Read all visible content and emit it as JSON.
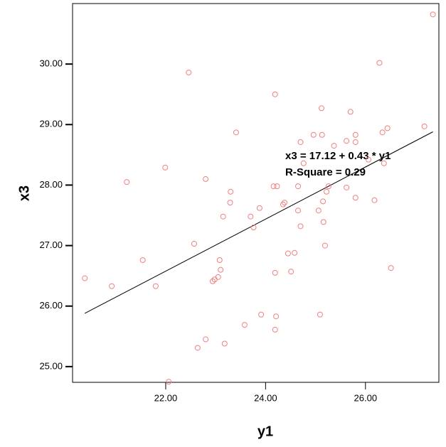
{
  "chart_data": {
    "type": "scatter",
    "x_label": "y1",
    "y_label": "x3",
    "xlim": [
      20.135,
      27.47
    ],
    "ylim": [
      24.74,
      31.0
    ],
    "xticks": [
      {
        "value": 22,
        "label": "22.00"
      },
      {
        "value": 24,
        "label": "24.00"
      },
      {
        "value": 26,
        "label": "26.00"
      }
    ],
    "yticks": [
      {
        "value": 25,
        "label": "25.00"
      },
      {
        "value": 26,
        "label": "26.00"
      },
      {
        "value": 27,
        "label": "27.00"
      },
      {
        "value": 28,
        "label": "28.00"
      },
      {
        "value": 29,
        "label": "29.00"
      },
      {
        "value": 30,
        "label": "30.00"
      }
    ],
    "color": "#f08080",
    "x": [
      27.35,
      26.28,
      22.46,
      24.19,
      25.12,
      25.7,
      23.41,
      27.18,
      26.44,
      26.34,
      24.96,
      25.13,
      25.37,
      25.62,
      25.8,
      25.8,
      24.7,
      24.76,
      26.06,
      26.37,
      21.99,
      22.8,
      21.22,
      24.16,
      24.23,
      24.65,
      25.26,
      25.62,
      23.3,
      25.22,
      23.29,
      24.35,
      24.38,
      25.15,
      25.8,
      26.18,
      23.88,
      24.65,
      25.06,
      23.15,
      23.7,
      25.16,
      23.76,
      24.7,
      22.57,
      25.19,
      21.54,
      23.08,
      24.45,
      24.58,
      23.1,
      24.19,
      24.51,
      26.51,
      20.38,
      22.98,
      22.94,
      23.05,
      20.92,
      21.8,
      24.21,
      23.91,
      25.09,
      23.58,
      24.19,
      22.8,
      22.64,
      23.18,
      22.06
    ],
    "y": [
      30.82,
      30.02,
      29.86,
      29.5,
      29.27,
      29.21,
      28.87,
      28.97,
      28.94,
      28.87,
      28.83,
      28.83,
      28.65,
      28.73,
      28.83,
      28.71,
      28.71,
      28.36,
      28.42,
      28.36,
      28.29,
      28.1,
      28.05,
      27.98,
      27.98,
      27.98,
      27.98,
      27.96,
      27.89,
      27.89,
      27.71,
      27.68,
      27.71,
      27.73,
      27.79,
      27.75,
      27.62,
      27.58,
      27.58,
      27.48,
      27.48,
      27.39,
      27.3,
      27.32,
      27.03,
      27.0,
      26.76,
      26.76,
      26.87,
      26.88,
      26.6,
      26.55,
      26.57,
      26.63,
      26.46,
      26.44,
      26.41,
      26.48,
      26.33,
      26.33,
      25.83,
      25.86,
      25.86,
      25.69,
      25.61,
      25.45,
      25.31,
      25.38,
      24.75
    ],
    "fit_line": {
      "x": [
        20.38,
        27.35
      ],
      "y": [
        25.88,
        28.88
      ],
      "color": "#000000"
    },
    "annotations": [
      "x3 = 17.12 + 0.43 * y1",
      "R-Square = 0.29"
    ]
  }
}
